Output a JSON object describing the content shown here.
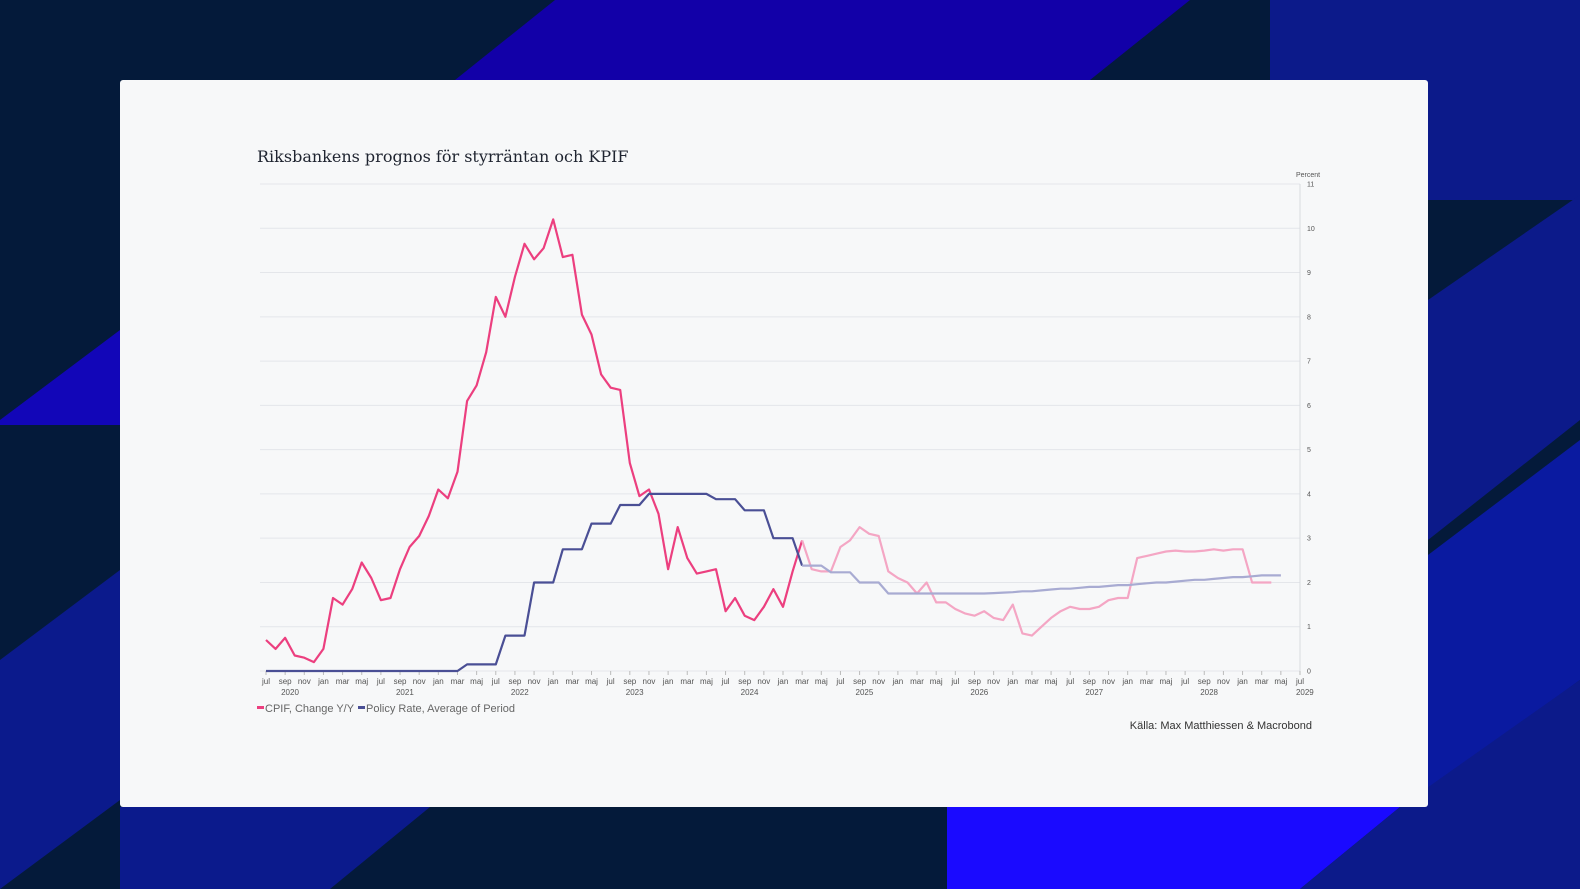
{
  "colors": {
    "cpif": "#ec3f7f",
    "cpif_forecast": "#f4a6c4",
    "policy": "#4a4f95",
    "policy_forecast": "#a8abd2"
  },
  "chart_data": {
    "type": "line",
    "title": "Riksbankens prognos för styrräntan och KPIF",
    "ylabel": "Percent",
    "ylim": [
      0,
      11
    ],
    "yticks": [
      "0",
      "1",
      "2",
      "3",
      "4",
      "5",
      "6",
      "7",
      "8",
      "9",
      "10",
      "11"
    ],
    "x_start": "2020-07",
    "x_end": "2029-07",
    "forecast_start_index": 56,
    "month_ticks": [
      "jul",
      "sep",
      "nov",
      "jan",
      "mar",
      "maj",
      "jul",
      "sep",
      "nov",
      "jan",
      "mar",
      "maj",
      "jul",
      "sep",
      "nov",
      "jan",
      "mar",
      "maj",
      "jul",
      "sep",
      "nov",
      "jan",
      "mar",
      "maj",
      "jul",
      "sep",
      "nov",
      "jan",
      "mar",
      "maj",
      "jul",
      "sep",
      "nov",
      "jan",
      "mar",
      "maj",
      "jul",
      "sep",
      "nov",
      "jan",
      "mar",
      "maj",
      "jul",
      "sep",
      "nov",
      "jan",
      "mar",
      "maj",
      "jul",
      "sep",
      "nov",
      "jan",
      "mar",
      "maj",
      "jul"
    ],
    "year_labels": [
      {
        "label": "2020",
        "tick_index": 0
      },
      {
        "label": "2021",
        "tick_index": 6
      },
      {
        "label": "2022",
        "tick_index": 12
      },
      {
        "label": "2023",
        "tick_index": 18
      },
      {
        "label": "2024",
        "tick_index": 24
      },
      {
        "label": "2025",
        "tick_index": 30
      },
      {
        "label": "2026",
        "tick_index": 36
      },
      {
        "label": "2027",
        "tick_index": 42
      },
      {
        "label": "2028",
        "tick_index": 48
      },
      {
        "label": "2029",
        "tick_index": 53
      }
    ],
    "series": [
      {
        "name": "CPIF, Change Y/Y",
        "values": [
          0.7,
          0.5,
          0.75,
          0.35,
          0.3,
          0.2,
          0.5,
          1.65,
          1.5,
          1.85,
          2.45,
          2.1,
          1.6,
          1.65,
          2.3,
          2.8,
          3.05,
          3.5,
          4.1,
          3.9,
          4.5,
          6.1,
          6.45,
          7.2,
          8.45,
          8.0,
          8.9,
          9.65,
          9.3,
          9.55,
          10.2,
          9.35,
          9.4,
          8.05,
          7.6,
          6.7,
          6.4,
          6.35,
          4.7,
          3.95,
          4.1,
          3.55,
          2.3,
          3.25,
          2.55,
          2.2,
          2.25,
          2.3,
          1.35,
          1.65,
          1.25,
          1.15,
          1.45,
          1.85,
          1.45,
          2.25,
          2.95,
          2.3,
          2.25,
          2.25,
          2.8,
          2.95,
          3.25,
          3.1,
          3.05,
          2.25,
          2.1,
          2.0,
          1.75,
          2.0,
          1.55,
          1.55,
          1.4,
          1.3,
          1.25,
          1.35,
          1.2,
          1.15,
          1.5,
          0.85,
          0.8,
          1.0,
          1.2,
          1.35,
          1.45,
          1.4,
          1.4,
          1.45,
          1.6,
          1.65,
          1.65,
          2.55,
          2.6,
          2.65,
          2.7,
          2.72,
          2.7,
          2.7,
          2.72,
          2.75,
          2.72,
          2.75,
          2.75,
          2.0,
          2.0,
          2.0
        ]
      },
      {
        "name": "Policy Rate, Average of Period",
        "values": [
          0,
          0,
          0,
          0,
          0,
          0,
          0,
          0,
          0,
          0,
          0,
          0,
          0,
          0,
          0,
          0,
          0,
          0,
          0,
          0,
          0,
          0.15,
          0.15,
          0.15,
          0.15,
          0.8,
          0.8,
          0.8,
          2.0,
          2.0,
          2.0,
          2.75,
          2.75,
          2.75,
          3.33,
          3.33,
          3.33,
          3.75,
          3.75,
          3.75,
          4.0,
          4.0,
          4.0,
          4.0,
          4.0,
          4.0,
          4.0,
          3.88,
          3.88,
          3.88,
          3.63,
          3.63,
          3.63,
          3.0,
          3.0,
          3.0,
          2.38,
          2.38,
          2.38,
          2.23,
          2.23,
          2.23,
          2.0,
          2.0,
          2.0,
          1.75,
          1.75,
          1.75,
          1.75,
          1.75,
          1.75,
          1.75,
          1.75,
          1.75,
          1.75,
          1.75,
          1.76,
          1.77,
          1.78,
          1.8,
          1.8,
          1.82,
          1.84,
          1.86,
          1.86,
          1.88,
          1.9,
          1.9,
          1.92,
          1.94,
          1.94,
          1.96,
          1.98,
          2.0,
          2.0,
          2.02,
          2.04,
          2.06,
          2.06,
          2.08,
          2.1,
          2.12,
          2.12,
          2.14,
          2.16,
          2.16,
          2.16
        ]
      }
    ],
    "legend": [
      "CPIF, Change Y/Y",
      "Policy Rate, Average of Period"
    ],
    "source": "Källa: Max Matthiessen & Macrobond"
  }
}
